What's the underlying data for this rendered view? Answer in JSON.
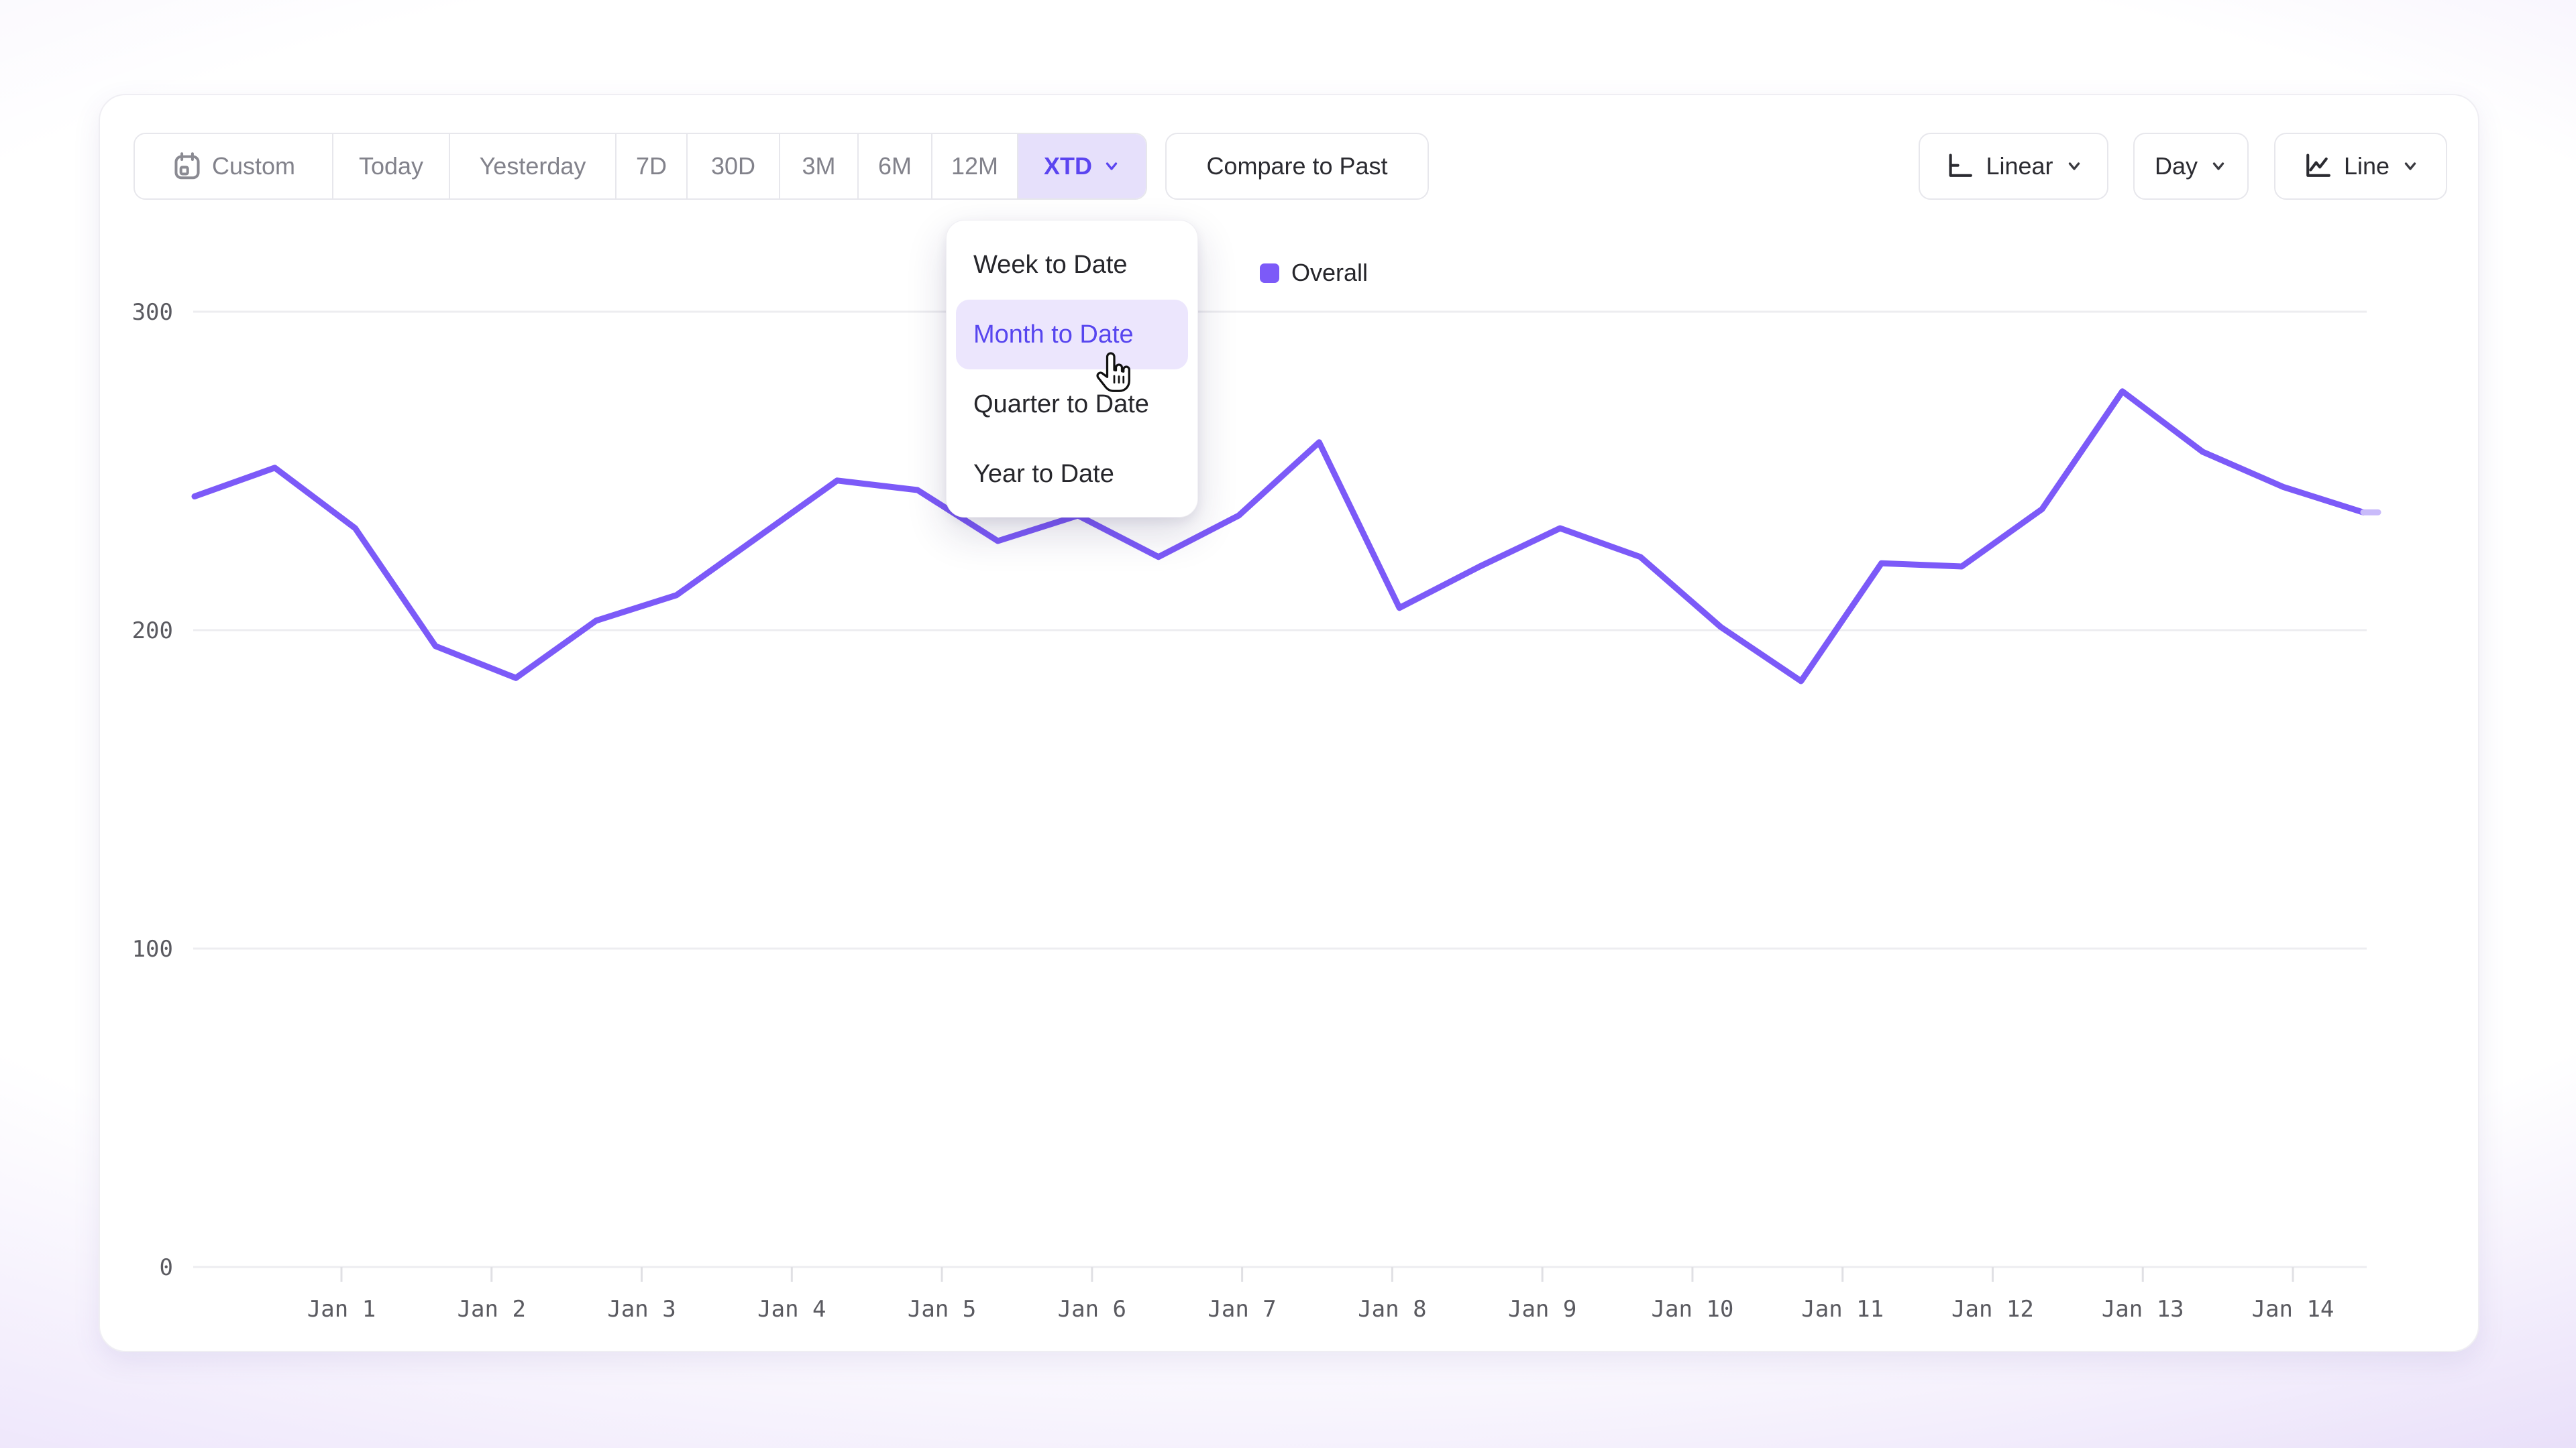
{
  "toolbar": {
    "ranges": [
      "Custom",
      "Today",
      "Yesterday",
      "7D",
      "30D",
      "3M",
      "6M",
      "12M",
      "XTD"
    ],
    "selected_range": "XTD",
    "compare_label": "Compare to Past",
    "scale_label": "Linear",
    "granularity_label": "Day",
    "chart_type_label": "Line"
  },
  "dropdown": {
    "items": [
      "Week to Date",
      "Month to Date",
      "Quarter to Date",
      "Year to Date"
    ],
    "highlighted": "Month to Date"
  },
  "legend": {
    "label": "Overall"
  },
  "chart_data": {
    "type": "line",
    "title": "",
    "xlabel": "",
    "ylabel": "",
    "x_tick_labels": [
      "Jan 1",
      "Jan 2",
      "Jan 3",
      "Jan 4",
      "Jan 5",
      "Jan 6",
      "Jan 7",
      "Jan 8",
      "Jan 9",
      "Jan 10",
      "Jan 11",
      "Jan 12",
      "Jan 13",
      "Jan 14"
    ],
    "y_ticks": [
      0,
      100,
      200,
      300
    ],
    "ylim": [
      0,
      310
    ],
    "grid": "horizontal",
    "legend_position": "top-center",
    "series": [
      {
        "name": "Overall",
        "color": "#7c5af8",
        "values": [
          242,
          251,
          232,
          195,
          185,
          203,
          211,
          229,
          247,
          244,
          228,
          236,
          223,
          236,
          259,
          207,
          220,
          232,
          223,
          201,
          184,
          221,
          220,
          238,
          275,
          256,
          245,
          237
        ]
      }
    ],
    "partial_period_tail": true
  },
  "colors": {
    "accent": "#5b45f0",
    "accent_bg": "#e6e0fb",
    "line": "#7c5af8",
    "line_faded": "#c9bbfa",
    "grid": "#ededf0",
    "tick": "#e0e0e4",
    "axis_text": "#5a5a60",
    "muted_text": "#82828b",
    "dark_text": "#2b2b31"
  }
}
